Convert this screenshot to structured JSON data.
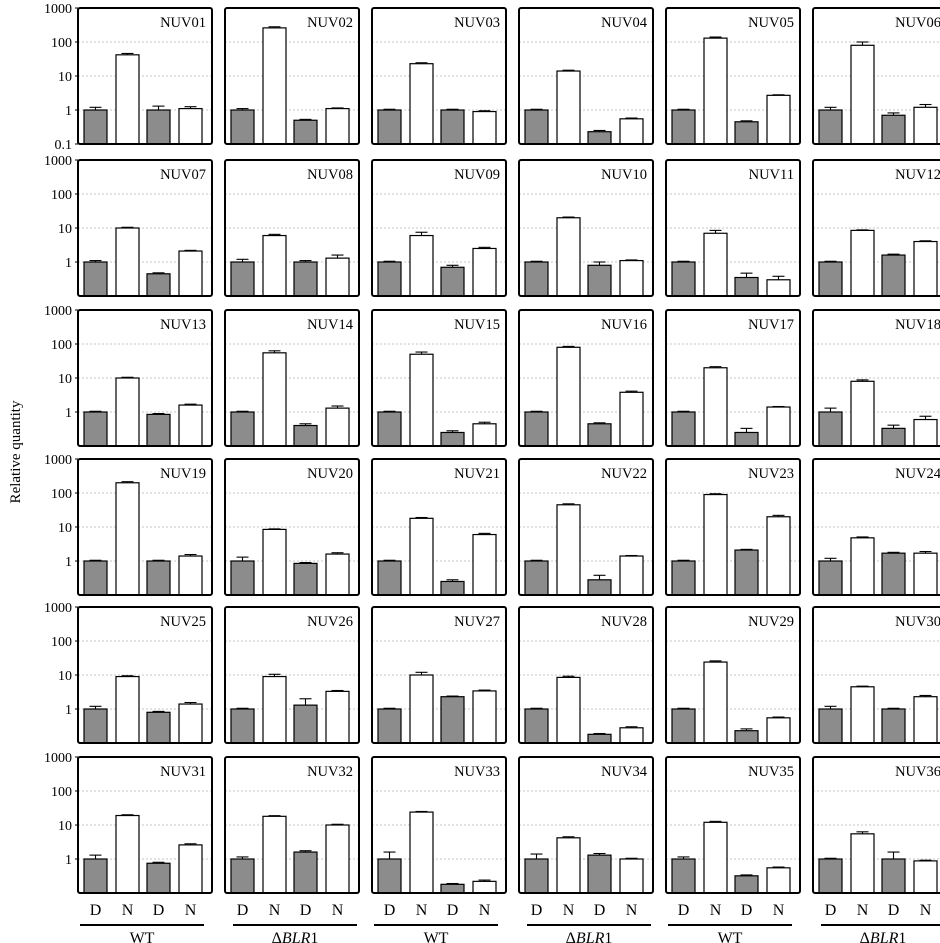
{
  "ylabel": "Relative quantity",
  "x_categories": [
    "D",
    "N",
    "D",
    "N"
  ],
  "groups": [
    {
      "label": "WT",
      "prefix": "",
      "italic": ""
    },
    {
      "label": "ΔBLR1",
      "prefix": "Δ",
      "italic": "BLR",
      "suffix": "1"
    }
  ],
  "colors": {
    "dark": "#8c8c8c",
    "light": "#ffffff",
    "frame": "#000000",
    "grid": "#b4b4b4"
  },
  "chart_data": {
    "type": "bar",
    "yscale": "log",
    "ylim": [
      0.1,
      1000
    ],
    "yticks": [
      "1000",
      "100",
      "10",
      "1",
      "0.1"
    ],
    "grid": "horizontal dotted",
    "categories": [
      "WT D",
      "WT N",
      "ΔBLR1 D",
      "ΔBLR1 N"
    ],
    "panels": [
      {
        "title": "NUV01",
        "values": [
          1.0,
          42,
          1.0,
          1.1
        ],
        "err": [
          0.2,
          4,
          0.3,
          0.15
        ]
      },
      {
        "title": "NUV02",
        "values": [
          1.0,
          260,
          0.5,
          1.1
        ],
        "err": [
          0.1,
          20,
          0.03,
          0.05
        ]
      },
      {
        "title": "NUV03",
        "values": [
          1.0,
          23,
          1.0,
          0.9
        ],
        "err": [
          0.05,
          1.5,
          0.05,
          0.05
        ]
      },
      {
        "title": "NUV04",
        "values": [
          1.0,
          14,
          0.23,
          0.55
        ],
        "err": [
          0.05,
          0.8,
          0.02,
          0.03
        ]
      },
      {
        "title": "NUV05",
        "values": [
          1.0,
          130,
          0.45,
          2.7
        ],
        "err": [
          0.05,
          10,
          0.03,
          0.1
        ]
      },
      {
        "title": "NUV06",
        "values": [
          1.0,
          80,
          0.7,
          1.2
        ],
        "err": [
          0.2,
          20,
          0.12,
          0.25
        ]
      },
      {
        "title": "NUV07",
        "values": [
          1.0,
          10,
          0.45,
          2.1
        ],
        "err": [
          0.1,
          0.5,
          0.03,
          0.1
        ]
      },
      {
        "title": "NUV08",
        "values": [
          1.0,
          6,
          1.0,
          1.3
        ],
        "err": [
          0.2,
          0.5,
          0.1,
          0.3
        ]
      },
      {
        "title": "NUV09",
        "values": [
          1.0,
          6,
          0.7,
          2.5
        ],
        "err": [
          0.05,
          1.5,
          0.1,
          0.2
        ]
      },
      {
        "title": "NUV10",
        "values": [
          1.0,
          20,
          0.8,
          1.1
        ],
        "err": [
          0.05,
          1,
          0.2,
          0.05
        ]
      },
      {
        "title": "NUV11",
        "values": [
          1.0,
          7,
          0.35,
          0.3
        ],
        "err": [
          0.05,
          1.5,
          0.12,
          0.08
        ]
      },
      {
        "title": "NUV12",
        "values": [
          1.0,
          8.5,
          1.6,
          4
        ],
        "err": [
          0.05,
          0.3,
          0.1,
          0.2
        ]
      },
      {
        "title": "NUV13",
        "values": [
          1.0,
          10,
          0.85,
          1.6
        ],
        "err": [
          0.05,
          0.5,
          0.05,
          0.1
        ]
      },
      {
        "title": "NUV14",
        "values": [
          1.0,
          55,
          0.4,
          1.3
        ],
        "err": [
          0.05,
          8,
          0.05,
          0.2
        ]
      },
      {
        "title": "NUV15",
        "values": [
          1.0,
          50,
          0.25,
          0.45
        ],
        "err": [
          0.05,
          8,
          0.03,
          0.05
        ]
      },
      {
        "title": "NUV16",
        "values": [
          1.0,
          80,
          0.45,
          3.8
        ],
        "err": [
          0.05,
          5,
          0.03,
          0.3
        ]
      },
      {
        "title": "NUV17",
        "values": [
          1.0,
          20,
          0.25,
          1.4
        ],
        "err": [
          0.05,
          1.5,
          0.08,
          0.05
        ]
      },
      {
        "title": "NUV18",
        "values": [
          1.0,
          8,
          0.33,
          0.6
        ],
        "err": [
          0.3,
          0.8,
          0.08,
          0.15
        ]
      },
      {
        "title": "NUV19",
        "values": [
          1.0,
          200,
          1.0,
          1.4
        ],
        "err": [
          0.05,
          15,
          0.05,
          0.15
        ]
      },
      {
        "title": "NUV20",
        "values": [
          1.0,
          8.5,
          0.85,
          1.6
        ],
        "err": [
          0.3,
          0.3,
          0.05,
          0.15
        ]
      },
      {
        "title": "NUV21",
        "values": [
          1.0,
          18,
          0.25,
          6
        ],
        "err": [
          0.05,
          1,
          0.03,
          0.5
        ]
      },
      {
        "title": "NUV22",
        "values": [
          1.0,
          45,
          0.28,
          1.4
        ],
        "err": [
          0.05,
          3,
          0.1,
          0.05
        ]
      },
      {
        "title": "NUV23",
        "values": [
          1.0,
          90,
          2.1,
          20
        ],
        "err": [
          0.05,
          5,
          0.1,
          2
        ]
      },
      {
        "title": "NUV24",
        "values": [
          1.0,
          4.8,
          1.7,
          1.7
        ],
        "err": [
          0.2,
          0.3,
          0.1,
          0.2
        ]
      },
      {
        "title": "NUV25",
        "values": [
          1.0,
          9,
          0.8,
          1.4
        ],
        "err": [
          0.2,
          0.5,
          0.05,
          0.15
        ]
      },
      {
        "title": "NUV26",
        "values": [
          1.0,
          9,
          1.3,
          3.3
        ],
        "err": [
          0.05,
          1.5,
          0.7,
          0.2
        ]
      },
      {
        "title": "NUV27",
        "values": [
          1.0,
          10,
          2.3,
          3.4
        ],
        "err": [
          0.05,
          2,
          0.1,
          0.2
        ]
      },
      {
        "title": "NUV28",
        "values": [
          1.0,
          8.5,
          0.18,
          0.28
        ],
        "err": [
          0.05,
          0.7,
          0.01,
          0.02
        ]
      },
      {
        "title": "NUV29",
        "values": [
          1.0,
          24,
          0.23,
          0.55
        ],
        "err": [
          0.05,
          2,
          0.03,
          0.03
        ]
      },
      {
        "title": "NUV30",
        "values": [
          1.0,
          4.5,
          1.0,
          2.3
        ],
        "err": [
          0.2,
          0.2,
          0.05,
          0.2
        ]
      },
      {
        "title": "NUV31",
        "values": [
          1.0,
          19,
          0.75,
          2.6
        ],
        "err": [
          0.3,
          1,
          0.05,
          0.2
        ]
      },
      {
        "title": "NUV32",
        "values": [
          1.0,
          18,
          1.6,
          10
        ],
        "err": [
          0.15,
          0.8,
          0.15,
          0.5
        ]
      },
      {
        "title": "NUV33",
        "values": [
          1.0,
          24,
          0.18,
          0.22
        ],
        "err": [
          0.6,
          1,
          0.01,
          0.02
        ]
      },
      {
        "title": "NUV34",
        "values": [
          1.0,
          4.2,
          1.3,
          1.0
        ],
        "err": [
          0.4,
          0.3,
          0.15,
          0.05
        ]
      },
      {
        "title": "NUV35",
        "values": [
          1.0,
          12,
          0.32,
          0.55
        ],
        "err": [
          0.15,
          0.8,
          0.02,
          0.03
        ]
      },
      {
        "title": "NUV36",
        "values": [
          1.0,
          5.5,
          1.0,
          0.88
        ],
        "err": [
          0.05,
          0.8,
          0.6,
          0.04
        ]
      }
    ]
  }
}
